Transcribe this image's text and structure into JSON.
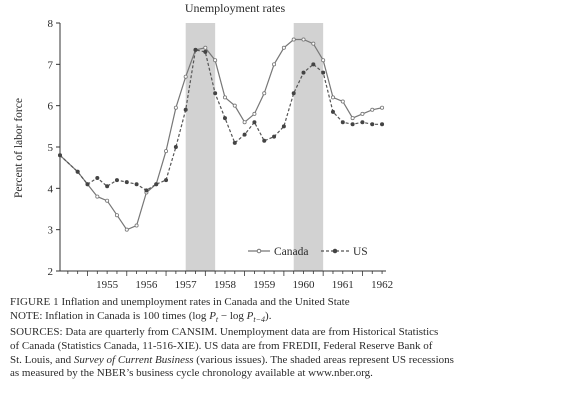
{
  "chart_data": {
    "type": "line",
    "title": "Unemployment rates",
    "ylabel": "Percent of labor force",
    "xlabel": "",
    "xlim": [
      1954.3,
      1962.6
    ],
    "ylim": [
      2,
      8
    ],
    "yticks": [
      2,
      3,
      4,
      5,
      6,
      7,
      8
    ],
    "xticks": [
      1955,
      1956,
      1957,
      1958,
      1959,
      1960,
      1961,
      1962
    ],
    "shaded": [
      [
        1957.5,
        1958.25
      ],
      [
        1960.25,
        1961.0
      ]
    ],
    "legend_position": "lower-right",
    "series": [
      {
        "name": "Canada",
        "marker": "open-circle",
        "x": [
          1954.3,
          1954.75,
          1955.0,
          1955.25,
          1955.5,
          1955.75,
          1956.0,
          1956.25,
          1956.5,
          1956.75,
          1957.0,
          1957.25,
          1957.5,
          1957.75,
          1958.0,
          1958.25,
          1958.5,
          1958.75,
          1959.0,
          1959.25,
          1959.5,
          1959.75,
          1960.0,
          1960.25,
          1960.5,
          1960.75,
          1961.0,
          1961.25,
          1961.5,
          1961.75,
          1962.0,
          1962.25,
          1962.5
        ],
        "y": [
          4.8,
          4.4,
          4.1,
          3.8,
          3.7,
          3.35,
          3.0,
          3.1,
          3.9,
          4.1,
          4.9,
          5.95,
          6.7,
          7.35,
          7.4,
          7.1,
          6.2,
          6.0,
          5.6,
          5.8,
          6.3,
          7.0,
          7.4,
          7.6,
          7.6,
          7.5,
          7.1,
          6.2,
          6.1,
          5.7,
          5.8,
          5.9,
          5.95
        ]
      },
      {
        "name": "US",
        "marker": "filled-circle",
        "x": [
          1954.3,
          1954.75,
          1955.0,
          1955.25,
          1955.5,
          1955.75,
          1956.0,
          1956.25,
          1956.5,
          1956.75,
          1957.0,
          1957.25,
          1957.5,
          1957.75,
          1958.0,
          1958.25,
          1958.5,
          1958.75,
          1959.0,
          1959.25,
          1959.5,
          1959.75,
          1960.0,
          1960.25,
          1960.5,
          1960.75,
          1961.0,
          1961.25,
          1961.5,
          1961.75,
          1962.0,
          1962.25,
          1962.5
        ],
        "y": [
          4.8,
          4.4,
          4.1,
          4.25,
          4.05,
          4.2,
          4.15,
          4.1,
          3.95,
          4.1,
          4.2,
          5.0,
          5.9,
          7.35,
          7.3,
          6.3,
          5.7,
          5.1,
          5.3,
          5.6,
          5.15,
          5.25,
          5.5,
          6.3,
          6.8,
          7.0,
          6.8,
          5.85,
          5.6,
          5.55,
          5.6,
          5.55,
          5.55
        ]
      }
    ]
  },
  "caption": {
    "figure_label": "FIGURE 1",
    "figure_title": " Inflation and unemployment rates in Canada and the United State",
    "note_prefix": "NOTE: Inflation in Canada is 100 times (log ",
    "note_p1": "P",
    "note_sub1": "t",
    "note_mid": " − log ",
    "note_p2": "P",
    "note_sub2": "t−4",
    "note_suffix": ").",
    "sources_line1": "SOURCES: Data are quarterly from CANSIM. Unemployment data are from Historical Statistics",
    "sources_line2": "of Canada (Statistics Canada, 11-516-XIE). US data are from FREDII, Federal Reserve Bank of",
    "sources_line3_a": "St. Louis, and ",
    "sources_line3_italic": "Survey of Current Business",
    "sources_line3_b": " (various issues). The shaded areas represent US recessions",
    "sources_line4": "as measured by the NBER’s business cycle chronology available at www.nber.org."
  }
}
